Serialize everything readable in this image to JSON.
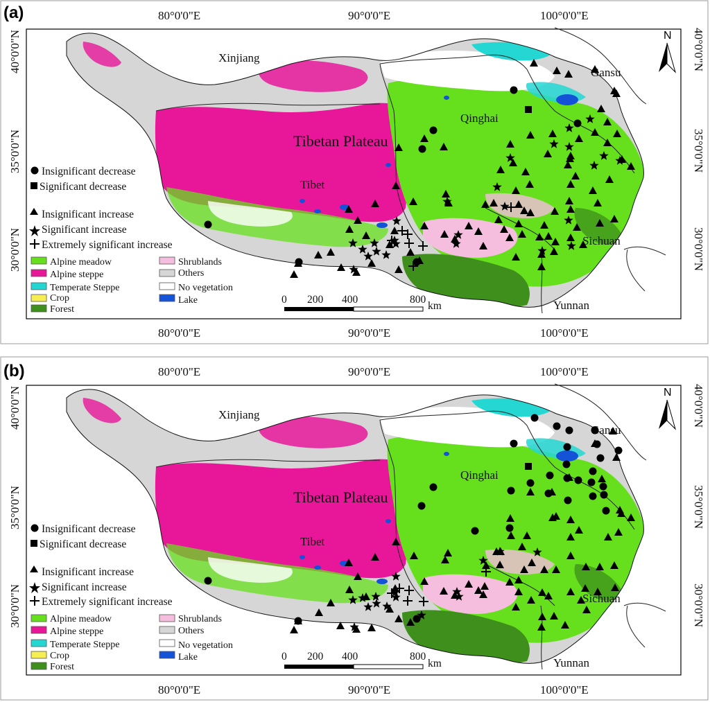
{
  "panels": [
    {
      "label": "(a)",
      "stations": {
        "triangle": [
          [
            770,
            91
          ],
          [
            803,
            102
          ],
          [
            820,
            107
          ],
          [
            858,
            100
          ],
          [
            886,
            131
          ],
          [
            889,
            135
          ],
          [
            867,
            157
          ],
          [
            876,
            176
          ],
          [
            858,
            191
          ],
          [
            890,
            193
          ],
          [
            876,
            206
          ],
          [
            835,
            200
          ],
          [
            822,
            229
          ],
          [
            819,
            238
          ],
          [
            797,
            193
          ],
          [
            790,
            222
          ],
          [
            765,
            195
          ],
          [
            736,
            208
          ],
          [
            740,
            235
          ],
          [
            722,
            245
          ],
          [
            758,
            248
          ],
          [
            764,
            266
          ],
          [
            744,
            275
          ],
          [
            748,
            295
          ],
          [
            700,
            295
          ],
          [
            643,
            280
          ],
          [
            647,
            293
          ],
          [
            596,
            291
          ],
          [
            541,
            294
          ],
          [
            571,
            268
          ],
          [
            503,
            302
          ],
          [
            516,
            318
          ],
          [
            504,
            331
          ],
          [
            528,
            340
          ],
          [
            569,
            333
          ],
          [
            612,
            326
          ],
          [
            641,
            338
          ],
          [
            656,
            345
          ],
          [
            676,
            326
          ],
          [
            690,
            334
          ],
          [
            727,
            331
          ],
          [
            735,
            343
          ],
          [
            753,
            338
          ],
          [
            778,
            342
          ],
          [
            791,
            341
          ],
          [
            801,
            349
          ],
          [
            823,
            343
          ],
          [
            832,
            328
          ],
          [
            865,
            322
          ],
          [
            886,
            316
          ],
          [
            862,
            293
          ],
          [
            855,
            275
          ],
          [
            823,
            302
          ],
          [
            821,
            290
          ],
          [
            800,
            305
          ],
          [
            785,
            325
          ],
          [
            765,
            307
          ],
          [
            748,
            323
          ],
          [
            719,
            317
          ],
          [
            697,
            355
          ],
          [
            744,
            371
          ],
          [
            781,
            367
          ],
          [
            799,
            363
          ],
          [
            781,
            385
          ],
          [
            841,
            353
          ],
          [
            823,
            266
          ],
          [
            830,
            254
          ],
          [
            879,
            259
          ],
          [
            897,
            230
          ],
          [
            910,
            240
          ],
          [
            823,
            225
          ],
          [
            756,
            304
          ],
          [
            712,
            293
          ],
          [
            640,
            212
          ],
          [
            612,
            200
          ],
          [
            575,
            213
          ],
          [
            592,
            364
          ],
          [
            562,
            353
          ],
          [
            605,
            376
          ],
          [
            575,
            389
          ],
          [
            536,
            380
          ],
          [
            514,
            393
          ],
          [
            492,
            386
          ],
          [
            477,
            364
          ],
          [
            459,
            368
          ],
          [
            430,
            380
          ],
          [
            424,
            396
          ]
        ],
        "star": [
          [
            821,
            185
          ],
          [
            851,
            172
          ],
          [
            799,
            208
          ],
          [
            857,
            239
          ],
          [
            821,
            212
          ],
          [
            871,
            225
          ],
          [
            894,
            232
          ],
          [
            736,
            228
          ],
          [
            717,
            270
          ],
          [
            728,
            298
          ],
          [
            820,
            318
          ],
          [
            824,
            355
          ],
          [
            782,
            362
          ],
          [
            661,
            339
          ],
          [
            658,
            352
          ],
          [
            572,
            319
          ],
          [
            540,
            351
          ],
          [
            543,
            363
          ],
          [
            557,
            368
          ],
          [
            571,
            352
          ],
          [
            523,
            360
          ],
          [
            509,
            351
          ],
          [
            531,
            370
          ],
          [
            510,
            389
          ],
          [
            569,
            347
          ],
          [
            645,
            291
          ]
        ],
        "circle": [
          [
            741,
            130
          ],
          [
            833,
            178
          ],
          [
            625,
            188
          ],
          [
            609,
            215
          ],
          [
            300,
            324
          ],
          [
            601,
            378
          ],
          [
            431,
            378
          ]
        ],
        "square": [
          [
            762,
            158
          ]
        ],
        "plus": [
          [
            580,
            333
          ],
          [
            588,
            338
          ],
          [
            565,
            347
          ],
          [
            590,
            351
          ],
          [
            610,
            355
          ],
          [
            596,
            384
          ],
          [
            737,
            299
          ]
        ]
      }
    },
    {
      "label": "(b)",
      "stations": {
        "triangle": [
          [
            858,
            640
          ],
          [
            884,
            622
          ],
          [
            889,
            660
          ],
          [
            868,
            691
          ],
          [
            821,
            689
          ],
          [
            796,
            710
          ],
          [
            797,
            747
          ],
          [
            765,
            710
          ],
          [
            736,
            748
          ],
          [
            737,
            773
          ],
          [
            722,
            796
          ],
          [
            753,
            789
          ],
          [
            760,
            773
          ],
          [
            716,
            796
          ],
          [
            701,
            816
          ],
          [
            699,
            846
          ],
          [
            748,
            854
          ],
          [
            766,
            866
          ],
          [
            782,
            855
          ],
          [
            791,
            860
          ],
          [
            823,
            854
          ],
          [
            844,
            849
          ],
          [
            862,
            854
          ],
          [
            887,
            848
          ],
          [
            894,
            736
          ],
          [
            896,
            741
          ],
          [
            910,
            747
          ],
          [
            892,
            768
          ],
          [
            877,
            775
          ],
          [
            835,
            765
          ],
          [
            823,
            750
          ],
          [
            802,
            745
          ],
          [
            823,
            775
          ],
          [
            823,
            802
          ],
          [
            845,
            818
          ],
          [
            865,
            818
          ],
          [
            886,
            816
          ],
          [
            802,
            822
          ],
          [
            785,
            822
          ],
          [
            767,
            812
          ],
          [
            748,
            837
          ],
          [
            735,
            840
          ],
          [
            721,
            815
          ],
          [
            697,
            858
          ],
          [
            744,
            876
          ],
          [
            782,
            890
          ],
          [
            799,
            889
          ],
          [
            781,
            905
          ],
          [
            838,
            866
          ],
          [
            815,
            902
          ],
          [
            846,
            880
          ],
          [
            756,
            822
          ],
          [
            646,
            798
          ],
          [
            642,
            808
          ],
          [
            597,
            802
          ],
          [
            541,
            804
          ],
          [
            571,
            782
          ],
          [
            503,
            812
          ],
          [
            516,
            832
          ],
          [
            504,
            851
          ],
          [
            528,
            861
          ],
          [
            570,
            849
          ],
          [
            612,
            839
          ],
          [
            640,
            853
          ],
          [
            656,
            859
          ],
          [
            676,
            843
          ],
          [
            690,
            852
          ],
          [
            575,
            893
          ],
          [
            592,
            898
          ],
          [
            562,
            879
          ],
          [
            536,
            906
          ],
          [
            514,
            908
          ],
          [
            491,
            903
          ],
          [
            477,
            870
          ],
          [
            460,
            884
          ],
          [
            430,
            896
          ],
          [
            424,
            909
          ]
        ],
        "star": [
          [
            697,
            809
          ],
          [
            721,
            796
          ],
          [
            775,
            797
          ],
          [
            659,
            854
          ],
          [
            662,
            861
          ],
          [
            571,
            832
          ],
          [
            542,
            861
          ],
          [
            543,
            871
          ],
          [
            558,
            875
          ],
          [
            571,
            862
          ],
          [
            523,
            863
          ],
          [
            509,
            866
          ],
          [
            531,
            876
          ],
          [
            511,
            905
          ],
          [
            570,
            855
          ],
          [
            608,
            888
          ]
        ],
        "circle": [
          [
            771,
            603
          ],
          [
            803,
            615
          ],
          [
            821,
            621
          ],
          [
            858,
            621
          ],
          [
            861,
            641
          ],
          [
            866,
            661
          ],
          [
            855,
            680
          ],
          [
            892,
            650
          ],
          [
            818,
            645
          ],
          [
            817,
            670
          ],
          [
            818,
            690
          ],
          [
            834,
            693
          ],
          [
            853,
            696
          ],
          [
            870,
            702
          ],
          [
            855,
            716
          ],
          [
            871,
            714
          ],
          [
            874,
            737
          ],
          [
            819,
            722
          ],
          [
            791,
            712
          ],
          [
            793,
            686
          ],
          [
            741,
            640
          ],
          [
            765,
            697
          ],
          [
            737,
            708
          ],
          [
            685,
            766
          ],
          [
            735,
            762
          ],
          [
            625,
            703
          ],
          [
            608,
            730
          ],
          [
            430,
            896
          ],
          [
            300,
            838
          ],
          [
            601,
            893
          ]
        ],
        "square": [
          [
            762,
            673
          ]
        ],
        "plus": [
          [
            576,
            849
          ],
          [
            590,
            852
          ],
          [
            565,
            856
          ],
          [
            588,
            867
          ],
          [
            611,
            868
          ],
          [
            701,
            825
          ]
        ]
      }
    }
  ],
  "axis": {
    "lon_labels": [
      "80°0'0\"E",
      "90°0'0\"E",
      "100°0'0\"E"
    ],
    "lat_labels": [
      "40°0'0\"N",
      "35°0'0\"N",
      "30°0'0\"N"
    ]
  },
  "places": {
    "xinjiang": "Xinjiang",
    "gansu": "Gansu",
    "qinghai": "Qinghai",
    "tibetan_plateau": "Tibetan Plateau",
    "tibet": "Tibet",
    "sichuan": "Sichuan",
    "yunnan": "Yunnan"
  },
  "north_arrow": "N",
  "trend_legend": [
    {
      "symbol": "circle",
      "label": "Insignificant decrease"
    },
    {
      "symbol": "square",
      "label": "Significant decrease"
    },
    {
      "symbol": "triangle",
      "label": "Insignificant increase"
    },
    {
      "symbol": "star",
      "label": "Significant increase"
    },
    {
      "symbol": "plus",
      "label": "Extremely significant increase"
    }
  ],
  "vegetation_legend": [
    {
      "label": "Alpine meadow",
      "color": "#66e01c"
    },
    {
      "label": "Alpine steppe",
      "color": "#e8179a"
    },
    {
      "label": "Temperate Steppe",
      "color": "#25d7d2"
    },
    {
      "label": "Crop",
      "color": "#f7ee54"
    },
    {
      "label": "Forest",
      "color": "#3f8f1c"
    },
    {
      "label": "Shrublands",
      "color": "#f5bdde"
    },
    {
      "label": "Others",
      "color": "#d6d6d6"
    },
    {
      "label": "No vegetation",
      "color": "#ffffff"
    },
    {
      "label": "Lake",
      "color": "#1452d8"
    }
  ],
  "scale_bar": {
    "ticks": [
      "0",
      "200",
      "400",
      "800"
    ],
    "unit": "km"
  }
}
